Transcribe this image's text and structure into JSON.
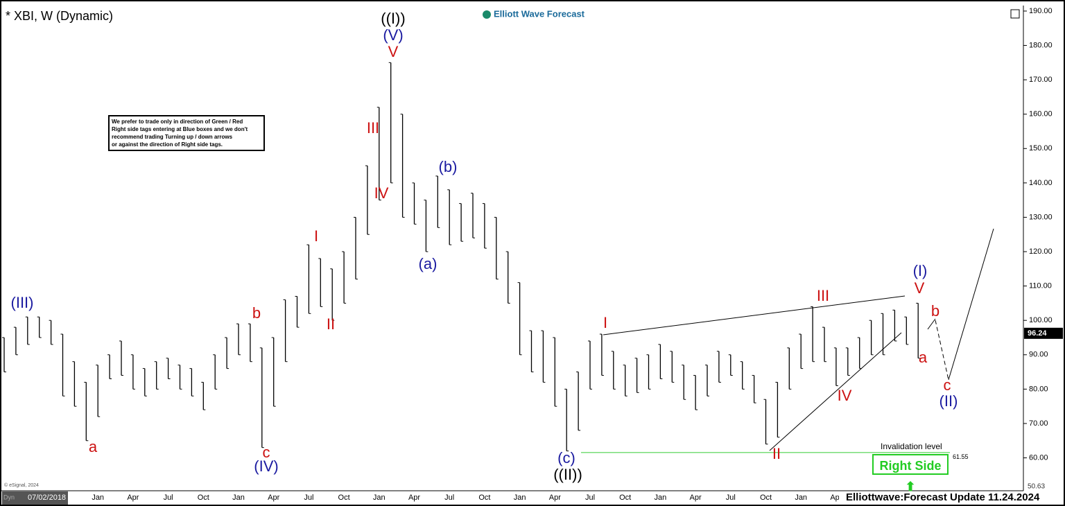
{
  "chart_data": {
    "type": "ohlc",
    "title": "* XBI, W (Dynamic)",
    "brand": "Elliott Wave Forecast",
    "notice": [
      "We prefer to trade only in direction of Green / Red",
      "Right side tags entering at Blue boxes and we don't",
      "recommend trading Turning up / down arrows",
      "or against the direction of Right side tags."
    ],
    "button": "Right Side",
    "source": "© eSignal, 2024",
    "mode": "Dyn",
    "cursor_date": "07/02/2018",
    "footer": "Elliottwave:Forecast Update 11.24.2024",
    "categories": [
      null,
      null,
      null,
      null,
      null,
      null,
      null,
      null,
      "Jan",
      null,
      null,
      "Apr",
      null,
      null,
      "Jul",
      null,
      null,
      "Oct",
      null,
      null,
      "Jan",
      null,
      null,
      "Apr",
      null,
      null,
      "Jul",
      null,
      null,
      "Oct",
      null,
      null,
      "Jan",
      null,
      null,
      "Apr",
      null,
      null,
      "Jul",
      null,
      null,
      "Oct",
      null,
      null,
      "Jan",
      null,
      null,
      "Apr",
      null,
      null,
      "Jul",
      null,
      null,
      "Oct",
      null,
      null,
      "Jan",
      null,
      null,
      "Apr",
      null,
      null,
      "Jul",
      null,
      null,
      "Oct",
      null,
      null,
      "Jan",
      null,
      null,
      "Apr",
      null,
      null,
      null,
      null,
      null,
      null,
      null
    ],
    "series": [
      {
        "color": "#000000",
        "high": [
          95,
          98,
          101,
          101,
          100,
          96,
          88,
          82,
          87,
          90,
          94,
          90,
          86,
          88,
          89,
          87,
          86,
          82,
          90,
          95,
          99,
          99,
          92,
          95,
          106,
          107,
          122,
          118,
          115,
          120,
          130,
          145,
          162,
          175,
          160,
          140,
          135,
          142,
          138,
          134,
          137,
          134,
          130,
          120,
          111,
          97,
          97,
          95,
          80,
          85,
          94,
          96,
          91,
          87,
          89,
          90,
          93,
          91,
          87,
          84,
          87,
          91,
          90,
          88,
          84,
          77,
          82,
          92,
          96,
          104,
          98,
          92,
          92,
          95,
          100,
          102,
          103,
          101,
          105
        ],
        "low": [
          85,
          90,
          93,
          95,
          93,
          78,
          75,
          65,
          72,
          83,
          84,
          80,
          78,
          80,
          83,
          80,
          78,
          74,
          80,
          86,
          90,
          88,
          63,
          75,
          88,
          98,
          102,
          104,
          100,
          105,
          112,
          125,
          135,
          140,
          130,
          128,
          120,
          127,
          122,
          123,
          124,
          121,
          112,
          105,
          90,
          85,
          82,
          75,
          62,
          68,
          80,
          84,
          80,
          78,
          79,
          80,
          83,
          82,
          77,
          74,
          78,
          82,
          84,
          80,
          76,
          64,
          66,
          80,
          86,
          88,
          88,
          81,
          84,
          86,
          90,
          90,
          94,
          93,
          89
        ]
      }
    ],
    "last_price": 96.24,
    "ylim": [
      50.63,
      191.2
    ],
    "yticks": [
      {
        "value": 60,
        "label": "60.00"
      },
      {
        "value": 70,
        "label": "70.00"
      },
      {
        "value": 80,
        "label": "80.00"
      },
      {
        "value": 90,
        "label": "90.00"
      },
      {
        "value": 100,
        "label": "100.00"
      },
      {
        "value": 110,
        "label": "110.00"
      },
      {
        "value": 120,
        "label": "120.00"
      },
      {
        "value": 130,
        "label": "130.00"
      },
      {
        "value": 140,
        "label": "140.00"
      },
      {
        "value": 150,
        "label": "150.00"
      },
      {
        "value": 160,
        "label": "160.00"
      },
      {
        "value": 170,
        "label": "170.00"
      },
      {
        "value": 180,
        "label": "180.00"
      },
      {
        "value": 190,
        "label": "190.00"
      }
    ],
    "invalidation": {
      "label": "Invalidation level",
      "value": 61.55
    },
    "annotations": [
      {
        "text": "(III)",
        "color": "#1a1aa0"
      },
      {
        "text": "a",
        "color": "#cc1111"
      },
      {
        "text": "b",
        "color": "#cc1111"
      },
      {
        "text": "c",
        "color": "#cc1111"
      },
      {
        "text": "(IV)",
        "color": "#1a1aa0"
      },
      {
        "text": "I",
        "color": "#cc1111"
      },
      {
        "text": "II",
        "color": "#cc1111"
      },
      {
        "text": "III",
        "color": "#cc1111"
      },
      {
        "text": "IV",
        "color": "#cc1111"
      },
      {
        "text": "V",
        "color": "#cc1111"
      },
      {
        "text": "(V)",
        "color": "#1a1aa0"
      },
      {
        "text": "((I))",
        "color": "#000000"
      },
      {
        "text": "(b)",
        "color": "#1a1aa0"
      },
      {
        "text": "(a)",
        "color": "#1a1aa0"
      },
      {
        "text": "(c)",
        "color": "#1a1aa0"
      },
      {
        "text": "((II))",
        "color": "#000000"
      },
      {
        "text": "I",
        "color": "#cc1111"
      },
      {
        "text": "II",
        "color": "#cc1111"
      },
      {
        "text": "III",
        "color": "#cc1111"
      },
      {
        "text": "IV",
        "color": "#cc1111"
      },
      {
        "text": "V",
        "color": "#cc1111"
      },
      {
        "text": "(I)",
        "color": "#1a1aa0"
      },
      {
        "text": "a",
        "color": "#cc1111"
      },
      {
        "text": "b",
        "color": "#cc1111"
      },
      {
        "text": "c",
        "color": "#cc1111"
      },
      {
        "text": "(II)",
        "color": "#1a1aa0"
      }
    ]
  }
}
